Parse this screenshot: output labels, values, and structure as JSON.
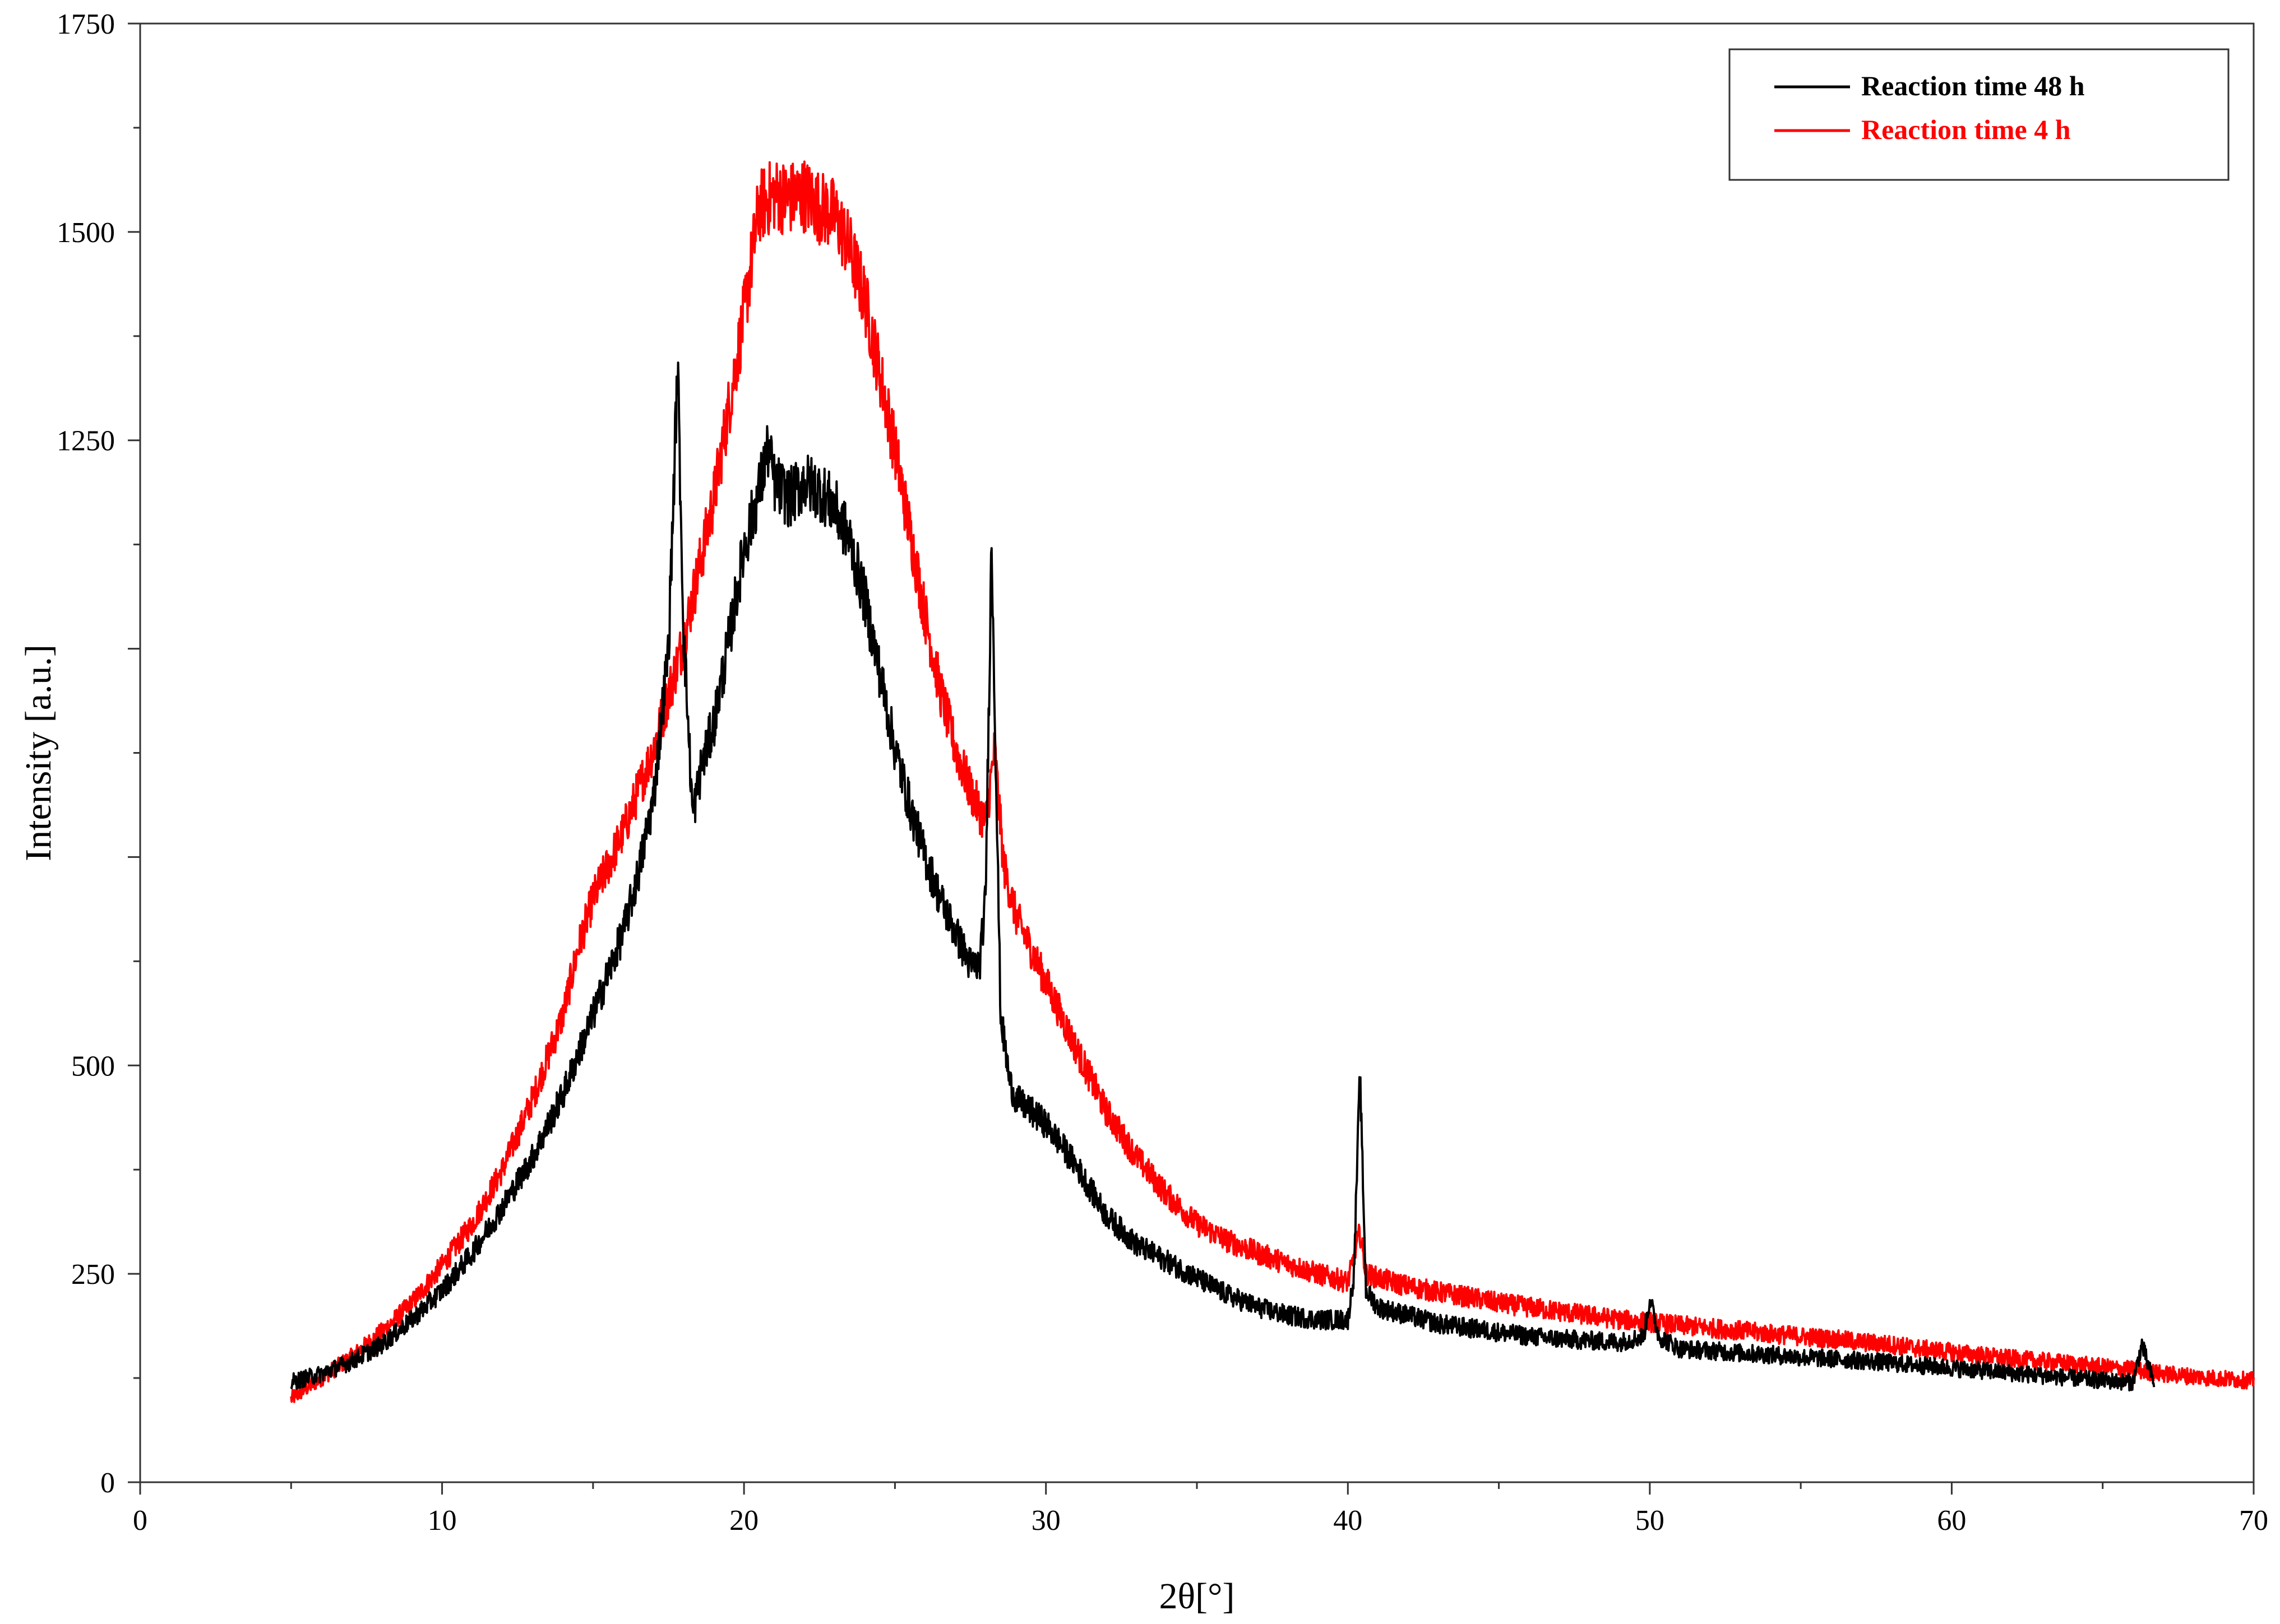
{
  "chart_data": {
    "type": "line",
    "xlabel": "2θ[°]",
    "ylabel": "Intensity [a.u.]",
    "xlim": [
      0,
      70
    ],
    "ylim": [
      0,
      1750
    ],
    "x_ticks": [
      0,
      10,
      20,
      30,
      40,
      50,
      60,
      70
    ],
    "x_tick_labels": [
      "0",
      "10",
      "20",
      "30",
      "40",
      "50",
      "60",
      "70"
    ],
    "y_ticks": [
      0,
      250,
      500,
      1250,
      1500,
      1750
    ],
    "y_tick_labels": [
      "0",
      "250",
      "500",
      "1250",
      "1500",
      "1750"
    ],
    "grid": false,
    "legend_position": "top-right",
    "series": [
      {
        "name": "Reaction time 48 h",
        "color": "#000000",
        "x": [
          5,
          6,
          7,
          8,
          9,
          10,
          11,
          12,
          13,
          14,
          15,
          16,
          16.5,
          17,
          17.5,
          17.8,
          18,
          18.3,
          18.6,
          19,
          19.5,
          20,
          20.5,
          20.8,
          21,
          21.5,
          22,
          22.5,
          23,
          23.5,
          24,
          24.5,
          25,
          25.5,
          26,
          26.5,
          27,
          27.5,
          27.8,
          28,
          28.2,
          28.5,
          28.8,
          29,
          30,
          31,
          32,
          33,
          34,
          35,
          36,
          37,
          38,
          39,
          40,
          40.2,
          40.4,
          40.6,
          41,
          42,
          43,
          44,
          45,
          46,
          47,
          48,
          49,
          49.8,
          50,
          50.3,
          51,
          52,
          53,
          54,
          55,
          56,
          57,
          58,
          59,
          60,
          61,
          62,
          63,
          64,
          65,
          66,
          66.3,
          66.7
        ],
        "values": [
          120,
          130,
          145,
          165,
          195,
          230,
          275,
          330,
          390,
          465,
          560,
          660,
          730,
          820,
          1000,
          1340,
          1020,
          800,
          860,
          910,
          1010,
          1120,
          1190,
          1240,
          1200,
          1180,
          1200,
          1190,
          1170,
          1130,
          1060,
          970,
          880,
          810,
          750,
          700,
          660,
          620,
          620,
          700,
          1130,
          560,
          480,
          460,
          430,
          380,
          320,
          285,
          265,
          245,
          225,
          210,
          200,
          195,
          195,
          250,
          490,
          230,
          210,
          200,
          190,
          185,
          180,
          175,
          172,
          170,
          168,
          175,
          220,
          175,
          160,
          158,
          155,
          153,
          150,
          148,
          146,
          143,
          140,
          137,
          134,
          131,
          128,
          125,
          122,
          120,
          165,
          118
        ]
      },
      {
        "name": "Reaction time 4 h",
        "color": "#ff0000",
        "x": [
          5,
          6,
          7,
          8,
          9,
          10,
          11,
          12,
          13,
          14,
          14.5,
          15,
          16,
          17,
          18,
          19,
          20,
          20.5,
          21,
          21.5,
          22,
          22.5,
          23,
          23.5,
          24,
          24.5,
          25,
          25.5,
          26,
          26.5,
          27,
          27.5,
          28,
          28.3,
          28.6,
          29,
          30,
          31,
          32,
          33,
          34,
          35,
          36,
          37,
          38,
          39,
          40,
          40.4,
          40.6,
          41,
          42,
          43,
          44,
          45,
          46,
          47,
          48,
          49,
          50,
          51,
          52,
          53,
          54,
          55,
          56,
          57,
          58,
          59,
          60,
          61,
          62,
          63,
          64,
          65,
          66,
          67,
          68,
          69,
          70
        ],
        "values": [
          100,
          125,
          150,
          180,
          215,
          260,
          310,
          375,
          460,
          560,
          640,
          700,
          780,
          880,
          1010,
          1180,
          1400,
          1530,
          1545,
          1540,
          1545,
          1530,
          1520,
          1480,
          1420,
          1330,
          1240,
          1140,
          1040,
          950,
          880,
          830,
          790,
          880,
          740,
          680,
          600,
          520,
          445,
          390,
          345,
          310,
          290,
          275,
          262,
          250,
          240,
          300,
          250,
          245,
          235,
          228,
          222,
          215,
          210,
          205,
          200,
          195,
          192,
          188,
          185,
          182,
          178,
          175,
          172,
          168,
          165,
          160,
          156,
          152,
          148,
          145,
          142,
          138,
          135,
          130,
          127,
          124,
          122
        ]
      }
    ]
  }
}
